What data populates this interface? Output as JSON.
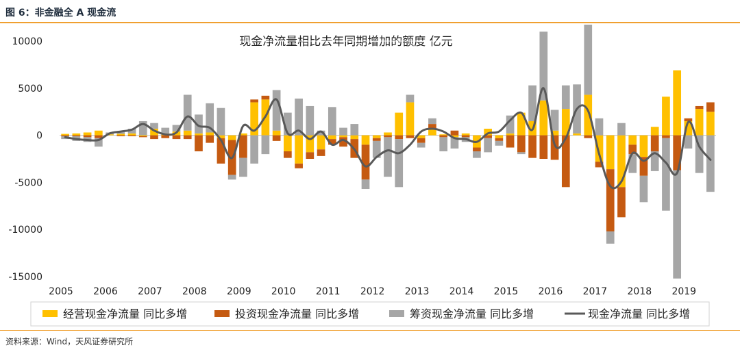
{
  "figure": {
    "label": "图 6：非金融全 A 现金流",
    "source": "资料来源：Wind，天风证券研究所"
  },
  "chart_data": {
    "type": "bar",
    "title": "现金净流量相比去年同期增加的额度  亿元",
    "ylim": [
      -15000,
      10000
    ],
    "yticks": [
      10000,
      5000,
      0,
      -5000,
      -10000,
      -15000
    ],
    "ytick_labels": [
      "10000",
      "5000",
      "0",
      "-5000",
      "-10000",
      "-15000"
    ],
    "year_labels": [
      "2005",
      "2006",
      "2007",
      "2008",
      "2009",
      "2010",
      "2011",
      "2012",
      "2013",
      "2014",
      "2015",
      "2016",
      "2017",
      "2018",
      "2019"
    ],
    "x": [
      "2005Q1",
      "2005Q2",
      "2005Q3",
      "2005Q4",
      "2006Q1",
      "2006Q2",
      "2006Q3",
      "2006Q4",
      "2007Q1",
      "2007Q2",
      "2007Q3",
      "2007Q4",
      "2008Q1",
      "2008Q2",
      "2008Q3",
      "2008Q4",
      "2009Q1",
      "2009Q2",
      "2009Q3",
      "2009Q4",
      "2010Q1",
      "2010Q2",
      "2010Q3",
      "2010Q4",
      "2011Q1",
      "2011Q2",
      "2011Q3",
      "2011Q4",
      "2012Q1",
      "2012Q2",
      "2012Q3",
      "2012Q4",
      "2013Q1",
      "2013Q2",
      "2013Q3",
      "2013Q4",
      "2014Q1",
      "2014Q2",
      "2014Q3",
      "2014Q4",
      "2015Q1",
      "2015Q2",
      "2015Q3",
      "2015Q4",
      "2016Q1",
      "2016Q2",
      "2016Q3",
      "2016Q4",
      "2017Q1",
      "2017Q2",
      "2017Q3",
      "2017Q4",
      "2018Q1",
      "2018Q2",
      "2018Q3",
      "2018Q4",
      "2019Q1",
      "2019Q2",
      "2019Q3"
    ],
    "series": [
      {
        "name": "经营现金净流量 同比多增",
        "type": "bar",
        "color": "#ffc000",
        "values": [
          150,
          200,
          300,
          500,
          100,
          150,
          200,
          -100,
          700,
          200,
          400,
          500,
          200,
          300,
          -300,
          -500,
          200,
          3500,
          3800,
          500,
          -1700,
          -3000,
          -1800,
          -1500,
          -400,
          -200,
          -400,
          -1000,
          -300,
          300,
          2400,
          3500,
          -300,
          600,
          100,
          -200,
          200,
          -1300,
          700,
          -300,
          200,
          2400,
          1500,
          3700,
          500,
          2800,
          200,
          4300,
          -2800,
          -3600,
          -5500,
          -1000,
          -2300,
          900,
          4100,
          6900,
          1500,
          2800,
          2500
        ]
      },
      {
        "name": "投资现金净流量 同比多增",
        "type": "bar",
        "color": "#c55a11",
        "values": [
          -100,
          -100,
          -200,
          -300,
          0,
          -100,
          -100,
          -100,
          -400,
          -300,
          -400,
          -400,
          -1700,
          -800,
          -2700,
          -3700,
          -2400,
          300,
          400,
          -600,
          -700,
          -500,
          -700,
          -700,
          -600,
          -1000,
          -2000,
          -3700,
          -300,
          -200,
          -400,
          -300,
          -500,
          600,
          -200,
          500,
          -200,
          -400,
          -300,
          -300,
          -1300,
          -1800,
          -2400,
          -2500,
          -2600,
          -5500,
          0,
          -300,
          -600,
          -6600,
          -3200,
          -1000,
          -2000,
          -1700,
          -300,
          -3700,
          300,
          300,
          1000
        ]
      },
      {
        "name": "筹资现金净流量 同比多增",
        "type": "bar",
        "color": "#a6a6a6",
        "values": [
          -300,
          -500,
          -500,
          -900,
          200,
          300,
          500,
          1500,
          600,
          600,
          700,
          3800,
          2000,
          3100,
          2900,
          -500,
          -2000,
          -3000,
          -2000,
          4300,
          2400,
          3900,
          3100,
          500,
          3000,
          800,
          1200,
          -1000,
          -1800,
          -4200,
          -5100,
          800,
          -500,
          600,
          -1500,
          -1200,
          -500,
          -700,
          -1500,
          -500,
          1900,
          -200,
          3800,
          7300,
          2200,
          2500,
          5200,
          7600,
          1800,
          -1300,
          1300,
          -2000,
          -2800,
          -2100,
          -7700,
          -11500,
          -1400,
          -4000,
          -6000
        ]
      },
      {
        "name": "现金净流量 同比多增",
        "type": "line",
        "color": "#595959",
        "values": [
          -200,
          -400,
          -500,
          -500,
          200,
          400,
          600,
          1200,
          500,
          100,
          300,
          2000,
          1000,
          800,
          -500,
          -2400,
          1000,
          500,
          2000,
          3800,
          200,
          500,
          -400,
          400,
          -1000,
          -500,
          -1500,
          -3300,
          -2300,
          -1600,
          -1900,
          -1000,
          400,
          700,
          400,
          -300,
          -400,
          -700,
          200,
          400,
          1600,
          2400,
          600,
          5000,
          -1000,
          -300,
          2800,
          2600,
          -2000,
          -5400,
          -4900,
          -1900,
          -2700,
          -1900,
          -2900,
          -4000,
          1400,
          -1200,
          -2600
        ]
      }
    ],
    "legend": "bottom"
  }
}
